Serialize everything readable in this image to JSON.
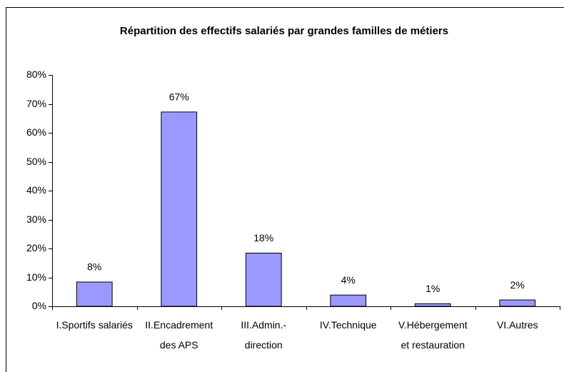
{
  "chart_data": {
    "type": "bar",
    "title": "Répartition des effectifs salariés par grandes familles de métiers",
    "categories": [
      "I.Sportifs salariés",
      "II.Encadrement des APS",
      "III.Admin.-direction",
      "IV.Technique",
      "V.Hébergement et restauration",
      "VI.Autres"
    ],
    "values": [
      8.4,
      67.2,
      18.4,
      3.9,
      0.9,
      2.2
    ],
    "value_labels": [
      "8%",
      "67%",
      "18%",
      "4%",
      "1%",
      "2%"
    ],
    "color": "#9999ff",
    "ylim": [
      0,
      80
    ],
    "yticks": [
      {
        "value": 0,
        "label": "0%"
      },
      {
        "value": 10,
        "label": "10%"
      },
      {
        "value": 20,
        "label": "20%"
      },
      {
        "value": 30,
        "label": "30%"
      },
      {
        "value": 40,
        "label": "40%"
      },
      {
        "value": 50,
        "label": "50%"
      },
      {
        "value": 60,
        "label": "60%"
      },
      {
        "value": 70,
        "label": "70%"
      },
      {
        "value": 80,
        "label": "80%"
      }
    ],
    "grid": false
  }
}
